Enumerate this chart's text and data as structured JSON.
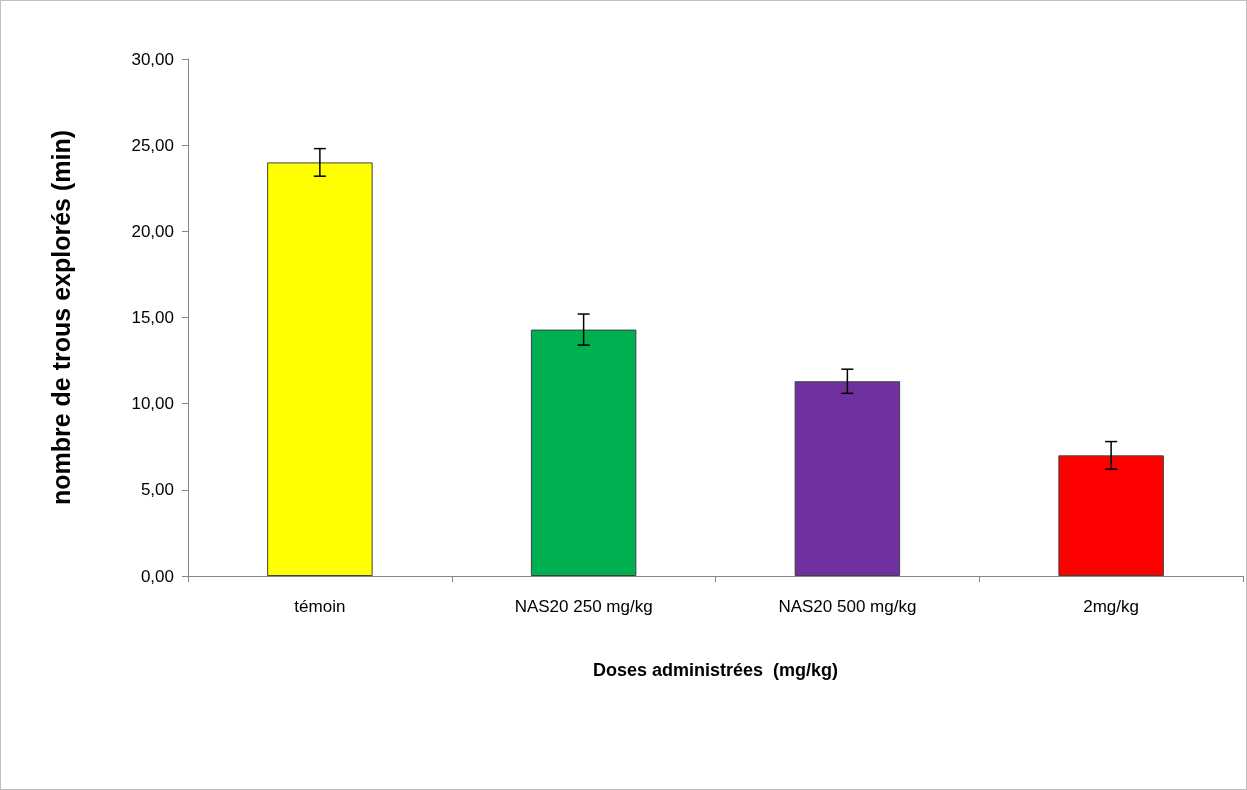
{
  "chart_data": {
    "type": "bar",
    "xlabel": "Doses administrées  (mg/kg)",
    "ylabel": "nombre de trous explorés (min)",
    "categories": [
      "témoin",
      "NAS20 250 mg/kg",
      "NAS20 500 mg/kg",
      "2mg/kg"
    ],
    "values": [
      24.0,
      14.3,
      11.3,
      7.0
    ],
    "colors": [
      "#ffff00",
      "#00b050",
      "#7030a0",
      "#ff0000"
    ],
    "errors": [
      0.8,
      0.9,
      0.7,
      0.8
    ],
    "ylim": [
      0,
      30
    ],
    "yticks": [
      {
        "value": 0,
        "label": "0,00"
      },
      {
        "value": 5,
        "label": "5,00"
      },
      {
        "value": 10,
        "label": "10,00"
      },
      {
        "value": 15,
        "label": "15,00"
      },
      {
        "value": 20,
        "label": "20,00"
      },
      {
        "value": 25,
        "label": "25,00"
      },
      {
        "value": 30,
        "label": "30,00"
      }
    ],
    "grid": false
  }
}
